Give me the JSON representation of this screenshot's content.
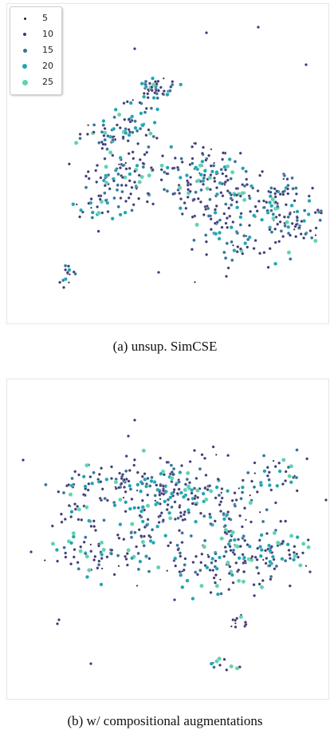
{
  "caption_a": "(a) unsup. SimCSE",
  "caption_b": "(b) w/ compositional augmentations",
  "legend": {
    "entries": [
      {
        "label": "5",
        "color": "#1f1f3a"
      },
      {
        "label": "10",
        "color": "#3e3a75"
      },
      {
        "label": "15",
        "color": "#34729a"
      },
      {
        "label": "20",
        "color": "#1ea6b0"
      },
      {
        "label": "25",
        "color": "#5fd3b0"
      }
    ]
  },
  "chart_data": [
    {
      "type": "scatter",
      "title": "(a) unsup. SimCSE",
      "xlabel": "",
      "ylabel": "",
      "grid": false,
      "legend_position": "top-left",
      "xlim": [
        0,
        400
      ],
      "ylim": [
        0,
        400
      ],
      "series": [
        {
          "name": "5",
          "color": "#1f1f3a"
        },
        {
          "name": "10",
          "color": "#3e3a75"
        },
        {
          "name": "15",
          "color": "#34729a"
        },
        {
          "name": "20",
          "color": "#1ea6b0"
        },
        {
          "name": "25",
          "color": "#5fd3b0"
        }
      ],
      "clusters": [
        {
          "center": [
            190,
            110
          ],
          "spread": [
            10,
            7
          ],
          "count": 40
        },
        {
          "center": [
            165,
            140
          ],
          "spread": [
            14,
            18
          ],
          "count": 35
        },
        {
          "center": [
            130,
            170
          ],
          "spread": [
            25,
            12
          ],
          "count": 45
        },
        {
          "center": [
            140,
            225
          ],
          "spread": [
            25,
            25
          ],
          "count": 90
        },
        {
          "center": [
            200,
            210
          ],
          "spread": [
            30,
            12
          ],
          "count": 30
        },
        {
          "center": [
            255,
            225
          ],
          "spread": [
            25,
            20
          ],
          "count": 110
        },
        {
          "center": [
            260,
            265
          ],
          "spread": [
            25,
            25
          ],
          "count": 50
        },
        {
          "center": [
            320,
            255
          ],
          "spread": [
            20,
            15
          ],
          "count": 55
        },
        {
          "center": [
            345,
            240
          ],
          "spread": [
            12,
            15
          ],
          "count": 25
        },
        {
          "center": [
            365,
            280
          ],
          "spread": [
            15,
            15
          ],
          "count": 55
        },
        {
          "center": [
            290,
            310
          ],
          "spread": [
            15,
            12
          ],
          "count": 25
        },
        {
          "center": [
            110,
            260
          ],
          "spread": [
            20,
            15
          ],
          "count": 20
        },
        {
          "center": [
            75,
            345
          ],
          "spread": [
            6,
            8
          ],
          "count": 14
        }
      ],
      "outliers": [
        [
          250,
          40
        ],
        [
          315,
          33
        ],
        [
          160,
          60
        ],
        [
          375,
          80
        ],
        [
          190,
          340
        ],
        [
          275,
          345
        ]
      ]
    },
    {
      "type": "scatter",
      "title": "(b) w/ compositional augmentations",
      "xlabel": "",
      "ylabel": "",
      "grid": false,
      "legend_position": "none",
      "xlim": [
        0,
        400
      ],
      "ylim": [
        0,
        400
      ],
      "series": [
        {
          "name": "5",
          "color": "#1f1f3a"
        },
        {
          "name": "10",
          "color": "#3e3a75"
        },
        {
          "name": "15",
          "color": "#34729a"
        },
        {
          "name": "20",
          "color": "#1ea6b0"
        },
        {
          "name": "25",
          "color": "#5fd3b0"
        }
      ],
      "clusters": [
        {
          "center": [
            210,
            615
          ],
          "spread": [
            30,
            22
          ],
          "count": 160
        },
        {
          "center": [
            150,
            600
          ],
          "spread": [
            25,
            12
          ],
          "count": 40
        },
        {
          "center": [
            100,
            610
          ],
          "spread": [
            18,
            12
          ],
          "count": 30
        },
        {
          "center": [
            90,
            660
          ],
          "spread": [
            20,
            20
          ],
          "count": 40
        },
        {
          "center": [
            115,
            700
          ],
          "spread": [
            30,
            12
          ],
          "count": 45
        },
        {
          "center": [
            170,
            665
          ],
          "spread": [
            15,
            20
          ],
          "count": 35
        },
        {
          "center": [
            280,
            640
          ],
          "spread": [
            25,
            25
          ],
          "count": 60
        },
        {
          "center": [
            280,
            700
          ],
          "spread": [
            30,
            25
          ],
          "count": 110
        },
        {
          "center": [
            340,
            690
          ],
          "spread": [
            22,
            15
          ],
          "count": 50
        },
        {
          "center": [
            340,
            590
          ],
          "spread": [
            15,
            15
          ],
          "count": 30
        },
        {
          "center": [
            290,
            775
          ],
          "spread": [
            7,
            5
          ],
          "count": 12
        },
        {
          "center": [
            275,
            830
          ],
          "spread": [
            10,
            4
          ],
          "count": 12
        },
        {
          "center": [
            220,
            710
          ],
          "spread": [
            10,
            15
          ],
          "count": 15
        }
      ],
      "outliers": [
        [
          160,
          525
        ],
        [
          152,
          545
        ],
        [
          20,
          575
        ],
        [
          30,
          690
        ],
        [
          65,
          775
        ],
        [
          63,
          780
        ],
        [
          105,
          830
        ],
        [
          400,
          625
        ],
        [
          380,
          715
        ],
        [
          210,
          750
        ],
        [
          235,
          563
        ]
      ]
    }
  ]
}
